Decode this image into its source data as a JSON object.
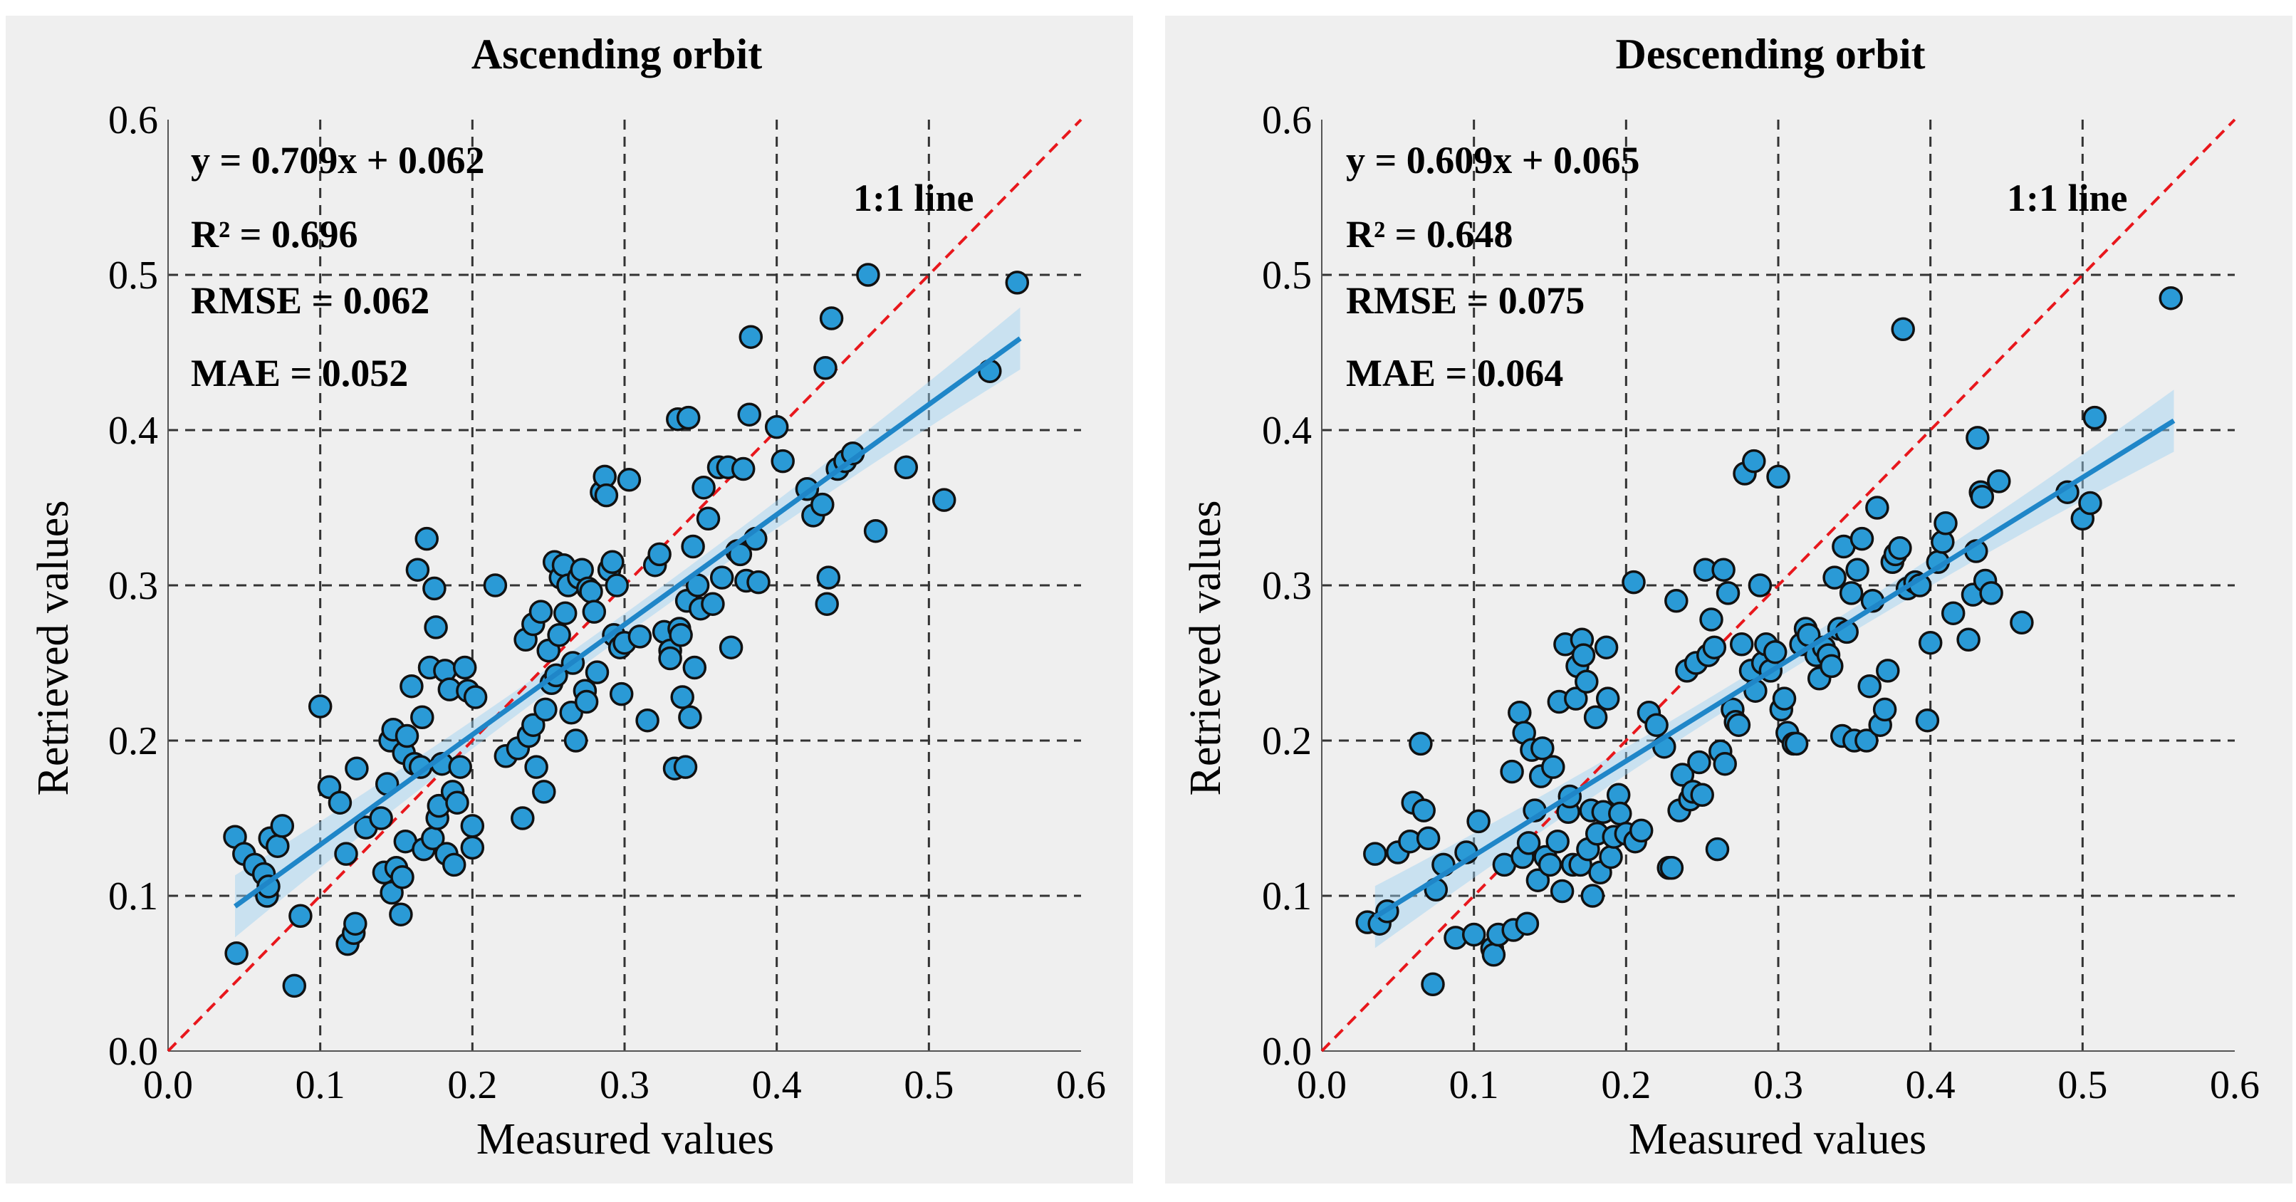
{
  "colors": {
    "panel_background": "#efefef",
    "point_fill": "#2a9ad6",
    "fit_line": "#1f86c8",
    "ci_band": "#9cd0f2",
    "reference_line": "#e8171c",
    "grid": "#333333"
  },
  "chart_data": [
    {
      "type": "scatter",
      "title": "Ascending orbit",
      "xlabel": "Measured values",
      "ylabel": "Retrieved values",
      "xlim": [
        0.0,
        0.6
      ],
      "ylim": [
        0.0,
        0.6
      ],
      "xticks": [
        "0.0",
        "0.1",
        "0.2",
        "0.3",
        "0.4",
        "0.5",
        "0.6"
      ],
      "yticks": [
        "0.0",
        "0.1",
        "0.2",
        "0.3",
        "0.4",
        "0.5",
        "0.6"
      ],
      "grid": true,
      "stats": {
        "equation": "y = 0.709x + 0.062",
        "r2": "R² = 0.696",
        "rmse": "RMSE = 0.062",
        "mae": "MAE = 0.052"
      },
      "reference_line_label": "1:1 line",
      "fit": {
        "slope": 0.709,
        "intercept": 0.062,
        "x_range": [
          0.044,
          0.56
        ],
        "ci_halfwidth_ends": 0.02,
        "ci_halfwidth_mid": 0.007
      },
      "points": [
        [
          0.044,
          0.138
        ],
        [
          0.045,
          0.063
        ],
        [
          0.05,
          0.127
        ],
        [
          0.057,
          0.12
        ],
        [
          0.063,
          0.114
        ],
        [
          0.065,
          0.1
        ],
        [
          0.066,
          0.106
        ],
        [
          0.067,
          0.137
        ],
        [
          0.072,
          0.132
        ],
        [
          0.075,
          0.145
        ],
        [
          0.083,
          0.042
        ],
        [
          0.087,
          0.087
        ],
        [
          0.1,
          0.222
        ],
        [
          0.106,
          0.17
        ],
        [
          0.113,
          0.16
        ],
        [
          0.117,
          0.127
        ],
        [
          0.118,
          0.069
        ],
        [
          0.122,
          0.076
        ],
        [
          0.123,
          0.082
        ],
        [
          0.124,
          0.182
        ],
        [
          0.13,
          0.144
        ],
        [
          0.14,
          0.15
        ],
        [
          0.142,
          0.115
        ],
        [
          0.144,
          0.172
        ],
        [
          0.146,
          0.2
        ],
        [
          0.147,
          0.102
        ],
        [
          0.148,
          0.207
        ],
        [
          0.15,
          0.118
        ],
        [
          0.153,
          0.088
        ],
        [
          0.154,
          0.112
        ],
        [
          0.155,
          0.192
        ],
        [
          0.156,
          0.135
        ],
        [
          0.157,
          0.203
        ],
        [
          0.16,
          0.235
        ],
        [
          0.162,
          0.185
        ],
        [
          0.164,
          0.31
        ],
        [
          0.166,
          0.183
        ],
        [
          0.167,
          0.215
        ],
        [
          0.168,
          0.13
        ],
        [
          0.17,
          0.33
        ],
        [
          0.172,
          0.247
        ],
        [
          0.174,
          0.137
        ],
        [
          0.175,
          0.298
        ],
        [
          0.176,
          0.273
        ],
        [
          0.177,
          0.15
        ],
        [
          0.178,
          0.158
        ],
        [
          0.18,
          0.185
        ],
        [
          0.182,
          0.245
        ],
        [
          0.183,
          0.127
        ],
        [
          0.185,
          0.233
        ],
        [
          0.187,
          0.167
        ],
        [
          0.188,
          0.12
        ],
        [
          0.19,
          0.16
        ],
        [
          0.192,
          0.183
        ],
        [
          0.195,
          0.247
        ],
        [
          0.197,
          0.232
        ],
        [
          0.2,
          0.145
        ],
        [
          0.2,
          0.131
        ],
        [
          0.202,
          0.228
        ],
        [
          0.215,
          0.3
        ],
        [
          0.222,
          0.19
        ],
        [
          0.23,
          0.195
        ],
        [
          0.233,
          0.15
        ],
        [
          0.235,
          0.265
        ],
        [
          0.237,
          0.203
        ],
        [
          0.24,
          0.275
        ],
        [
          0.24,
          0.21
        ],
        [
          0.242,
          0.183
        ],
        [
          0.245,
          0.283
        ],
        [
          0.247,
          0.167
        ],
        [
          0.248,
          0.22
        ],
        [
          0.25,
          0.258
        ],
        [
          0.252,
          0.237
        ],
        [
          0.254,
          0.315
        ],
        [
          0.255,
          0.242
        ],
        [
          0.257,
          0.268
        ],
        [
          0.258,
          0.305
        ],
        [
          0.26,
          0.313
        ],
        [
          0.261,
          0.282
        ],
        [
          0.263,
          0.3
        ],
        [
          0.265,
          0.218
        ],
        [
          0.266,
          0.25
        ],
        [
          0.268,
          0.2
        ],
        [
          0.27,
          0.305
        ],
        [
          0.272,
          0.31
        ],
        [
          0.274,
          0.232
        ],
        [
          0.275,
          0.225
        ],
        [
          0.276,
          0.298
        ],
        [
          0.278,
          0.296
        ],
        [
          0.28,
          0.283
        ],
        [
          0.282,
          0.244
        ],
        [
          0.285,
          0.36
        ],
        [
          0.287,
          0.37
        ],
        [
          0.288,
          0.358
        ],
        [
          0.29,
          0.31
        ],
        [
          0.292,
          0.315
        ],
        [
          0.293,
          0.268
        ],
        [
          0.295,
          0.3
        ],
        [
          0.297,
          0.26
        ],
        [
          0.298,
          0.23
        ],
        [
          0.3,
          0.263
        ],
        [
          0.303,
          0.368
        ],
        [
          0.31,
          0.267
        ],
        [
          0.315,
          0.213
        ],
        [
          0.32,
          0.313
        ],
        [
          0.323,
          0.32
        ],
        [
          0.326,
          0.27
        ],
        [
          0.33,
          0.258
        ],
        [
          0.33,
          0.253
        ],
        [
          0.333,
          0.182
        ],
        [
          0.335,
          0.407
        ],
        [
          0.336,
          0.272
        ],
        [
          0.337,
          0.268
        ],
        [
          0.338,
          0.228
        ],
        [
          0.34,
          0.183
        ],
        [
          0.341,
          0.29
        ],
        [
          0.342,
          0.408
        ],
        [
          0.343,
          0.215
        ],
        [
          0.345,
          0.325
        ],
        [
          0.346,
          0.247
        ],
        [
          0.348,
          0.3
        ],
        [
          0.35,
          0.285
        ],
        [
          0.352,
          0.363
        ],
        [
          0.355,
          0.343
        ],
        [
          0.358,
          0.288
        ],
        [
          0.362,
          0.376
        ],
        [
          0.364,
          0.305
        ],
        [
          0.368,
          0.376
        ],
        [
          0.37,
          0.26
        ],
        [
          0.374,
          0.322
        ],
        [
          0.376,
          0.32
        ],
        [
          0.378,
          0.375
        ],
        [
          0.38,
          0.303
        ],
        [
          0.382,
          0.41
        ],
        [
          0.383,
          0.46
        ],
        [
          0.386,
          0.33
        ],
        [
          0.388,
          0.302
        ],
        [
          0.4,
          0.402
        ],
        [
          0.404,
          0.38
        ],
        [
          0.42,
          0.362
        ],
        [
          0.424,
          0.345
        ],
        [
          0.43,
          0.352
        ],
        [
          0.432,
          0.44
        ],
        [
          0.433,
          0.288
        ],
        [
          0.434,
          0.305
        ],
        [
          0.436,
          0.472
        ],
        [
          0.44,
          0.375
        ],
        [
          0.445,
          0.38
        ],
        [
          0.45,
          0.385
        ],
        [
          0.46,
          0.5
        ],
        [
          0.465,
          0.335
        ],
        [
          0.485,
          0.376
        ],
        [
          0.51,
          0.355
        ],
        [
          0.54,
          0.438
        ],
        [
          0.558,
          0.495
        ]
      ]
    },
    {
      "type": "scatter",
      "title": "Descending orbit",
      "xlabel": "Measured values",
      "ylabel": "Retrieved values",
      "xlim": [
        0.0,
        0.6
      ],
      "ylim": [
        0.0,
        0.6
      ],
      "xticks": [
        "0.0",
        "0.1",
        "0.2",
        "0.3",
        "0.4",
        "0.5",
        "0.6"
      ],
      "yticks": [
        "0.0",
        "0.1",
        "0.2",
        "0.3",
        "0.4",
        "0.5",
        "0.6"
      ],
      "grid": true,
      "stats": {
        "equation": "y = 0.609x + 0.065",
        "r2": "R² = 0.648",
        "rmse": "RMSE = 0.075",
        "mae": "MAE = 0.064"
      },
      "reference_line_label": "1:1 line",
      "fit": {
        "slope": 0.609,
        "intercept": 0.065,
        "x_range": [
          0.035,
          0.56
        ],
        "ci_halfwidth_ends": 0.02,
        "ci_halfwidth_mid": 0.007
      },
      "points": [
        [
          0.03,
          0.083
        ],
        [
          0.035,
          0.127
        ],
        [
          0.038,
          0.082
        ],
        [
          0.043,
          0.09
        ],
        [
          0.05,
          0.128
        ],
        [
          0.058,
          0.135
        ],
        [
          0.06,
          0.16
        ],
        [
          0.065,
          0.198
        ],
        [
          0.067,
          0.155
        ],
        [
          0.07,
          0.137
        ],
        [
          0.073,
          0.043
        ],
        [
          0.075,
          0.104
        ],
        [
          0.08,
          0.12
        ],
        [
          0.088,
          0.073
        ],
        [
          0.095,
          0.128
        ],
        [
          0.1,
          0.075
        ],
        [
          0.103,
          0.148
        ],
        [
          0.112,
          0.066
        ],
        [
          0.113,
          0.062
        ],
        [
          0.116,
          0.075
        ],
        [
          0.12,
          0.12
        ],
        [
          0.125,
          0.18
        ],
        [
          0.126,
          0.078
        ],
        [
          0.13,
          0.218
        ],
        [
          0.132,
          0.125
        ],
        [
          0.133,
          0.205
        ],
        [
          0.135,
          0.082
        ],
        [
          0.136,
          0.134
        ],
        [
          0.138,
          0.194
        ],
        [
          0.14,
          0.155
        ],
        [
          0.142,
          0.11
        ],
        [
          0.144,
          0.177
        ],
        [
          0.145,
          0.195
        ],
        [
          0.147,
          0.125
        ],
        [
          0.15,
          0.12
        ],
        [
          0.152,
          0.183
        ],
        [
          0.155,
          0.135
        ],
        [
          0.156,
          0.225
        ],
        [
          0.158,
          0.103
        ],
        [
          0.16,
          0.262
        ],
        [
          0.162,
          0.154
        ],
        [
          0.163,
          0.164
        ],
        [
          0.165,
          0.12
        ],
        [
          0.167,
          0.227
        ],
        [
          0.168,
          0.248
        ],
        [
          0.17,
          0.12
        ],
        [
          0.171,
          0.265
        ],
        [
          0.172,
          0.255
        ],
        [
          0.174,
          0.238
        ],
        [
          0.175,
          0.13
        ],
        [
          0.177,
          0.155
        ],
        [
          0.178,
          0.1
        ],
        [
          0.18,
          0.215
        ],
        [
          0.181,
          0.14
        ],
        [
          0.183,
          0.115
        ],
        [
          0.185,
          0.154
        ],
        [
          0.187,
          0.26
        ],
        [
          0.188,
          0.227
        ],
        [
          0.19,
          0.125
        ],
        [
          0.192,
          0.138
        ],
        [
          0.195,
          0.165
        ],
        [
          0.196,
          0.153
        ],
        [
          0.2,
          0.14
        ],
        [
          0.205,
          0.302
        ],
        [
          0.206,
          0.135
        ],
        [
          0.21,
          0.142
        ],
        [
          0.215,
          0.218
        ],
        [
          0.22,
          0.21
        ],
        [
          0.225,
          0.196
        ],
        [
          0.228,
          0.118
        ],
        [
          0.23,
          0.118
        ],
        [
          0.233,
          0.29
        ],
        [
          0.235,
          0.155
        ],
        [
          0.237,
          0.178
        ],
        [
          0.24,
          0.245
        ],
        [
          0.242,
          0.162
        ],
        [
          0.244,
          0.167
        ],
        [
          0.246,
          0.25
        ],
        [
          0.248,
          0.186
        ],
        [
          0.25,
          0.165
        ],
        [
          0.252,
          0.31
        ],
        [
          0.254,
          0.255
        ],
        [
          0.256,
          0.278
        ],
        [
          0.258,
          0.26
        ],
        [
          0.26,
          0.13
        ],
        [
          0.262,
          0.193
        ],
        [
          0.264,
          0.31
        ],
        [
          0.265,
          0.185
        ],
        [
          0.267,
          0.295
        ],
        [
          0.27,
          0.22
        ],
        [
          0.272,
          0.212
        ],
        [
          0.274,
          0.21
        ],
        [
          0.276,
          0.262
        ],
        [
          0.278,
          0.372
        ],
        [
          0.282,
          0.245
        ],
        [
          0.284,
          0.38
        ],
        [
          0.285,
          0.232
        ],
        [
          0.288,
          0.3
        ],
        [
          0.29,
          0.25
        ],
        [
          0.292,
          0.262
        ],
        [
          0.295,
          0.245
        ],
        [
          0.298,
          0.257
        ],
        [
          0.3,
          0.37
        ],
        [
          0.302,
          0.22
        ],
        [
          0.304,
          0.227
        ],
        [
          0.306,
          0.205
        ],
        [
          0.31,
          0.198
        ],
        [
          0.312,
          0.198
        ],
        [
          0.315,
          0.262
        ],
        [
          0.318,
          0.272
        ],
        [
          0.32,
          0.268
        ],
        [
          0.325,
          0.255
        ],
        [
          0.327,
          0.24
        ],
        [
          0.33,
          0.26
        ],
        [
          0.333,
          0.255
        ],
        [
          0.335,
          0.248
        ],
        [
          0.337,
          0.305
        ],
        [
          0.34,
          0.272
        ],
        [
          0.342,
          0.203
        ],
        [
          0.343,
          0.325
        ],
        [
          0.345,
          0.27
        ],
        [
          0.348,
          0.295
        ],
        [
          0.35,
          0.2
        ],
        [
          0.352,
          0.31
        ],
        [
          0.355,
          0.33
        ],
        [
          0.358,
          0.2
        ],
        [
          0.36,
          0.235
        ],
        [
          0.362,
          0.29
        ],
        [
          0.365,
          0.35
        ],
        [
          0.367,
          0.21
        ],
        [
          0.37,
          0.22
        ],
        [
          0.372,
          0.245
        ],
        [
          0.375,
          0.315
        ],
        [
          0.377,
          0.32
        ],
        [
          0.38,
          0.324
        ],
        [
          0.382,
          0.465
        ],
        [
          0.385,
          0.298
        ],
        [
          0.39,
          0.302
        ],
        [
          0.393,
          0.3
        ],
        [
          0.398,
          0.213
        ],
        [
          0.4,
          0.263
        ],
        [
          0.405,
          0.315
        ],
        [
          0.408,
          0.328
        ],
        [
          0.41,
          0.34
        ],
        [
          0.415,
          0.282
        ],
        [
          0.425,
          0.265
        ],
        [
          0.428,
          0.294
        ],
        [
          0.43,
          0.322
        ],
        [
          0.431,
          0.395
        ],
        [
          0.433,
          0.36
        ],
        [
          0.434,
          0.357
        ],
        [
          0.436,
          0.303
        ],
        [
          0.44,
          0.295
        ],
        [
          0.445,
          0.367
        ],
        [
          0.46,
          0.276
        ],
        [
          0.49,
          0.36
        ],
        [
          0.5,
          0.343
        ],
        [
          0.505,
          0.353
        ],
        [
          0.508,
          0.408
        ],
        [
          0.558,
          0.485
        ]
      ]
    }
  ]
}
